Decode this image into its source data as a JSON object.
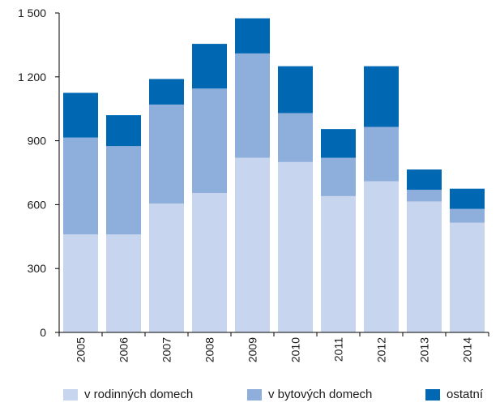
{
  "chart_data": {
    "type": "bar",
    "stacked": true,
    "categories": [
      "2005",
      "2006",
      "2007",
      "2008",
      "2009",
      "2010",
      "2011",
      "2012",
      "2013",
      "2014"
    ],
    "series": [
      {
        "name": "v rodinných domech",
        "color": "#c8d5ee",
        "values": [
          460,
          460,
          605,
          655,
          820,
          800,
          640,
          710,
          615,
          515
        ]
      },
      {
        "name": "v bytových domech",
        "color": "#8eaedb",
        "values": [
          455,
          415,
          465,
          490,
          490,
          230,
          180,
          255,
          55,
          65
        ]
      },
      {
        "name": "ostatní",
        "color": "#0068b2",
        "values": [
          210,
          145,
          120,
          210,
          165,
          220,
          135,
          285,
          95,
          95
        ]
      }
    ],
    "yticks": [
      "0",
      "300",
      "600",
      "900",
      "1 200",
      "1 500"
    ],
    "ylim": [
      0,
      1500
    ],
    "grid": false,
    "legend_position": "bottom"
  }
}
